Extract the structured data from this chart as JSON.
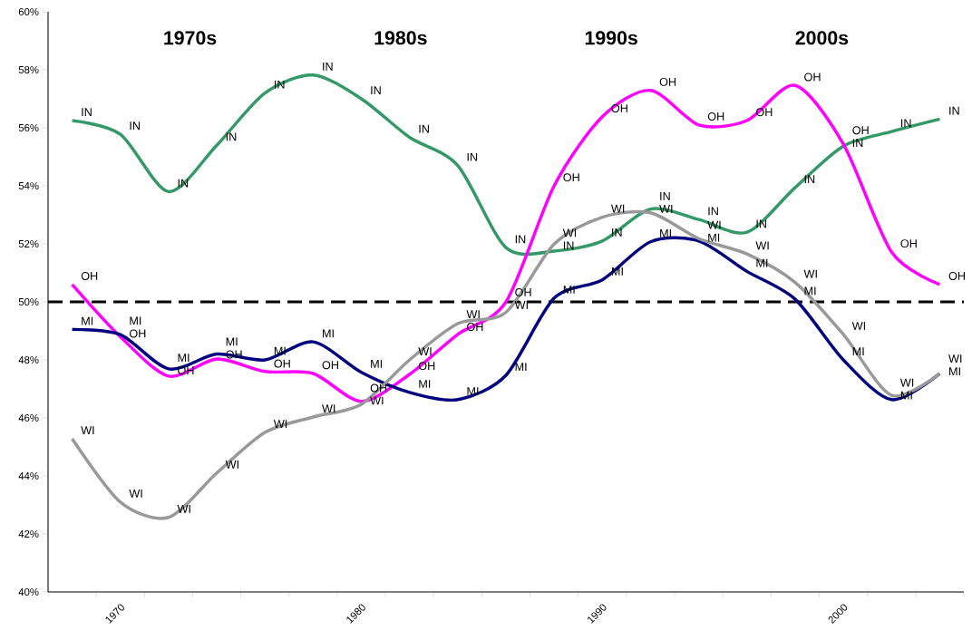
{
  "chart_data": {
    "type": "line",
    "categories": [
      null,
      "1970",
      null,
      null,
      null,
      null,
      "1980",
      null,
      null,
      null,
      null,
      "1990",
      null,
      null,
      null,
      null,
      "2000",
      null,
      null
    ],
    "series": [
      {
        "name": "IN",
        "color": "#339966",
        "values": [
          56.25,
          55.78,
          53.8,
          55.4,
          57.2,
          57.82,
          57.0,
          55.67,
          54.7,
          51.87,
          51.75,
          52.1,
          53.2,
          52.84,
          52.4,
          53.94,
          55.37,
          55.87,
          56.3
        ]
      },
      {
        "name": "OH",
        "color": "#ff00ff",
        "values": [
          50.6,
          48.8,
          47.44,
          48.03,
          47.6,
          47.53,
          46.57,
          47.5,
          48.88,
          50.0,
          54.0,
          56.38,
          57.29,
          56.1,
          56.25,
          57.46,
          55.44,
          51.72,
          50.6
        ]
      },
      {
        "name": "MI",
        "color": "#000080",
        "values": [
          49.05,
          48.87,
          47.69,
          48.2,
          48.0,
          48.62,
          47.57,
          46.88,
          46.63,
          47.47,
          50.13,
          50.76,
          52.07,
          52.1,
          51.05,
          50.09,
          48.0,
          46.63,
          47.53
        ]
      },
      {
        "name": "WI",
        "color": "#999999",
        "values": [
          45.28,
          43.1,
          42.57,
          44.1,
          45.5,
          46.03,
          46.47,
          48.0,
          49.25,
          49.64,
          51.99,
          52.92,
          53.07,
          52.18,
          51.65,
          50.67,
          48.88,
          46.78,
          47.53
        ]
      }
    ],
    "ylim": [
      40,
      60
    ],
    "yticks": [
      {
        "value": 40,
        "label": "40%"
      },
      {
        "value": 42,
        "label": "42%"
      },
      {
        "value": 44,
        "label": "44%"
      },
      {
        "value": 46,
        "label": "46%"
      },
      {
        "value": 48,
        "label": "48%"
      },
      {
        "value": 50,
        "label": "50%"
      },
      {
        "value": 52,
        "label": "52%"
      },
      {
        "value": 54,
        "label": "54%"
      },
      {
        "value": 56,
        "label": "56%"
      },
      {
        "value": 58,
        "label": "58%"
      },
      {
        "value": 60,
        "label": "60%"
      }
    ],
    "ref_lines": [
      {
        "axis": "y",
        "value": 50,
        "color": "#000000",
        "line_style": "dashed"
      }
    ],
    "annotations": [
      "1970s",
      "1980s",
      "1990s",
      "2000s"
    ],
    "grid": false,
    "legend": false,
    "marker": "none",
    "line_style": "solid"
  }
}
